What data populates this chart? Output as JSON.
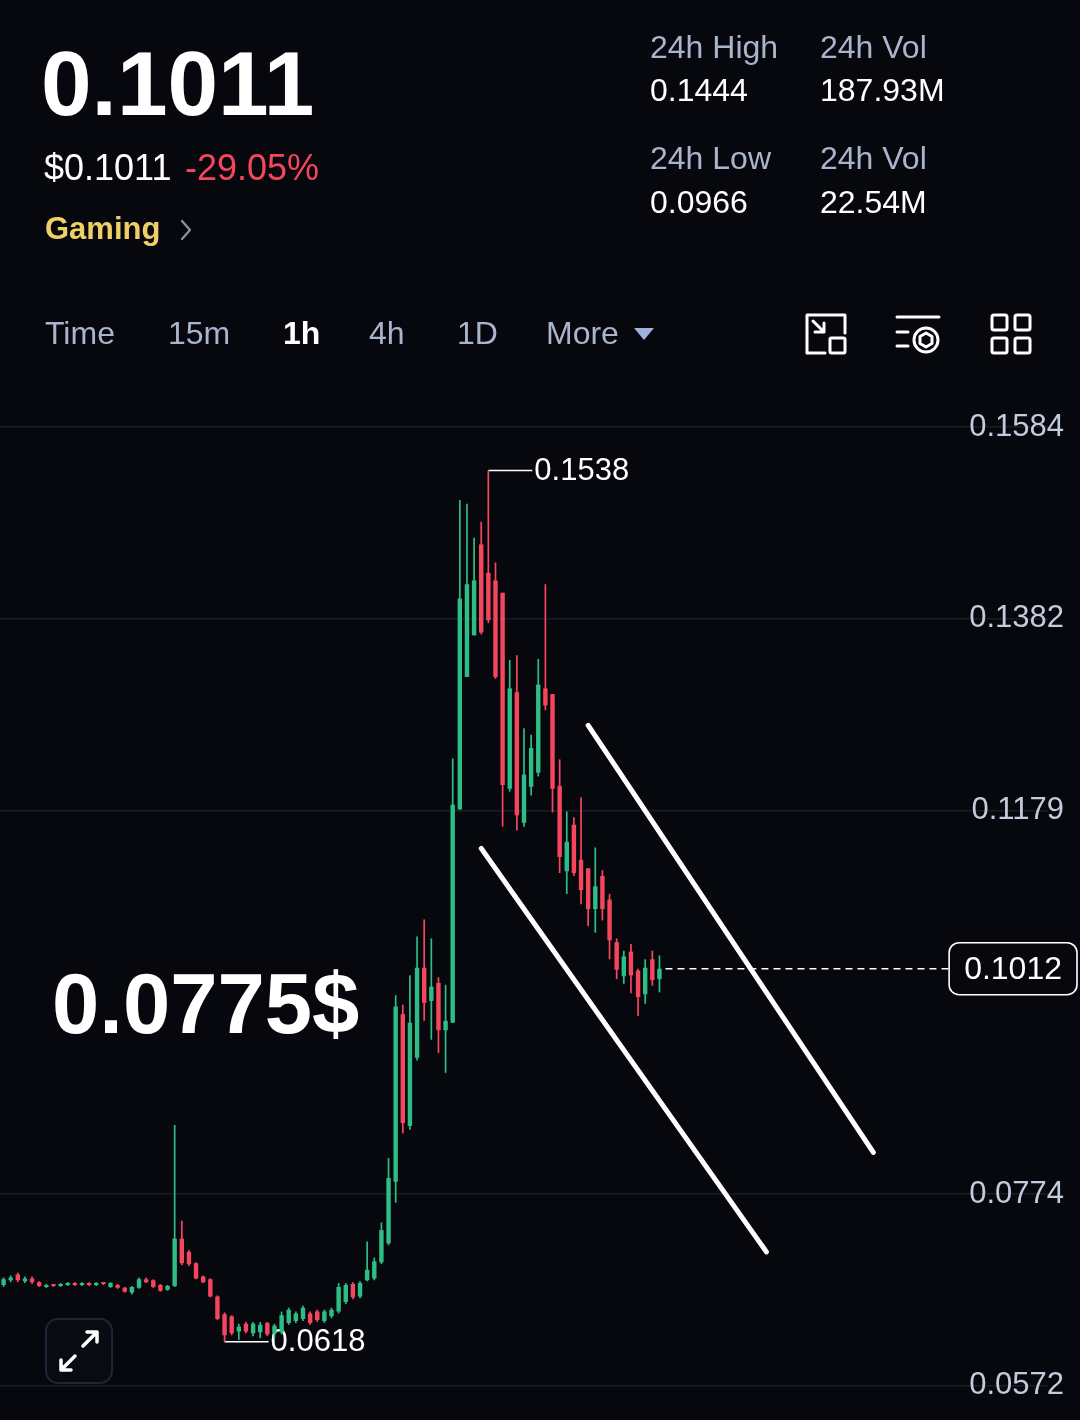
{
  "chart_data": {
    "type": "candlestick",
    "title": "0.1011",
    "subtitle": "$0.1011",
    "categories": [
      null,
      null,
      null,
      null,
      null,
      null,
      null,
      null,
      null,
      null,
      null,
      null,
      null,
      null,
      null,
      null,
      null,
      null,
      null,
      null,
      null,
      null,
      null,
      null,
      null,
      null,
      null,
      null,
      null,
      null,
      null,
      null,
      null,
      null,
      null,
      null,
      null,
      null,
      null,
      null,
      null,
      null,
      null,
      null,
      null,
      null,
      null,
      null,
      null,
      null,
      null,
      null,
      null,
      null,
      null,
      null,
      null,
      null,
      null,
      null,
      null,
      null,
      null,
      null,
      null,
      null,
      null,
      null,
      null,
      null,
      null,
      null,
      null,
      null,
      null,
      null,
      null,
      null,
      null,
      null,
      null,
      null,
      null,
      null,
      null,
      null,
      null,
      null,
      null,
      null,
      null,
      null,
      null,
      null,
      null,
      null,
      null,
      null,
      null,
      null,
      null,
      null,
      null,
      null,
      null,
      null,
      null,
      null,
      null,
      null,
      null,
      null,
      null,
      null,
      null,
      null,
      null,
      null,
      null,
      null,
      null,
      null,
      null,
      null,
      null,
      null,
      null,
      null,
      null,
      null,
      null,
      null,
      null,
      null,
      null,
      null,
      null,
      null,
      null,
      null,
      null,
      null,
      null,
      null,
      null,
      null,
      null
    ],
    "ohlc": [
      [
        0.0678,
        0.0686,
        0.0676,
        0.0684
      ],
      [
        0.0683,
        0.0688,
        0.0681,
        0.0686
      ],
      [
        0.0689,
        0.0691,
        0.0681,
        0.0683
      ],
      [
        0.0682,
        0.0687,
        0.068,
        0.0685
      ],
      [
        0.0685,
        0.0687,
        0.0679,
        0.0681
      ],
      [
        0.0681,
        0.0682,
        0.0676,
        0.0677
      ],
      [
        0.0676,
        0.0679,
        0.0675,
        0.0678
      ],
      [
        0.0678,
        0.0679,
        0.0676,
        0.0677
      ],
      [
        0.0677,
        0.068,
        0.0676,
        0.0679
      ],
      [
        0.0678,
        0.0681,
        0.0677,
        0.068
      ],
      [
        0.068,
        0.0681,
        0.0677,
        0.0678
      ],
      [
        0.0678,
        0.0681,
        0.0677,
        0.068
      ],
      [
        0.068,
        0.0681,
        0.0677,
        0.0678
      ],
      [
        0.0678,
        0.0681,
        0.0677,
        0.068
      ],
      [
        0.068,
        0.0681,
        0.0678,
        0.0679
      ],
      [
        0.0676,
        0.0681,
        0.0675,
        0.068
      ],
      [
        0.0678,
        0.0679,
        0.0674,
        0.0675
      ],
      [
        0.0675,
        0.0676,
        0.067,
        0.0671
      ],
      [
        0.067,
        0.0677,
        0.0668,
        0.0676
      ],
      [
        0.0675,
        0.0686,
        0.0674,
        0.0684
      ],
      [
        0.0684,
        0.0686,
        0.068,
        0.0681
      ],
      [
        0.0683,
        0.0684,
        0.0675,
        0.0676
      ],
      [
        0.0678,
        0.0679,
        0.0671,
        0.0672
      ],
      [
        0.0673,
        0.0678,
        0.0672,
        0.0677
      ],
      [
        0.0677,
        0.0847,
        0.0676,
        0.0727
      ],
      [
        0.0727,
        0.0746,
        0.0699,
        0.0701
      ],
      [
        0.0713,
        0.0715,
        0.0698,
        0.07
      ],
      [
        0.0701,
        0.0702,
        0.0684,
        0.0685
      ],
      [
        0.0687,
        0.0688,
        0.068,
        0.0681
      ],
      [
        0.0684,
        0.0685,
        0.0665,
        0.0666
      ],
      [
        0.0666,
        0.0667,
        0.0641,
        0.0642
      ],
      [
        0.0647,
        0.0649,
        0.0618,
        0.0625
      ],
      [
        0.0645,
        0.0646,
        0.0625,
        0.0627
      ],
      [
        0.0629,
        0.0637,
        0.062,
        0.0634
      ],
      [
        0.0637,
        0.0639,
        0.0627,
        0.0629
      ],
      [
        0.0627,
        0.0639,
        0.0624,
        0.0637
      ],
      [
        0.0628,
        0.0639,
        0.0622,
        0.0636
      ],
      [
        0.0638,
        0.0639,
        0.0624,
        0.0626
      ],
      [
        0.0627,
        0.0637,
        0.0622,
        0.0635
      ],
      [
        0.0628,
        0.065,
        0.0626,
        0.0646
      ],
      [
        0.0638,
        0.0654,
        0.0636,
        0.0652
      ],
      [
        0.064,
        0.065,
        0.0638,
        0.0648
      ],
      [
        0.0642,
        0.0656,
        0.064,
        0.0654
      ],
      [
        0.0648,
        0.065,
        0.0636,
        0.0638
      ],
      [
        0.065,
        0.0652,
        0.0639,
        0.0641
      ],
      [
        0.064,
        0.0652,
        0.0638,
        0.065
      ],
      [
        0.0645,
        0.0654,
        0.0643,
        0.0652
      ],
      [
        0.065,
        0.068,
        0.0648,
        0.0676
      ],
      [
        0.066,
        0.068,
        0.0658,
        0.0678
      ],
      [
        0.0679,
        0.0681,
        0.0663,
        0.0665
      ],
      [
        0.0666,
        0.0682,
        0.0664,
        0.068
      ],
      [
        0.0683,
        0.0724,
        0.0682,
        0.0694
      ],
      [
        0.0685,
        0.0707,
        0.0683,
        0.0703
      ],
      [
        0.0702,
        0.0744,
        0.07,
        0.0736
      ],
      [
        0.0722,
        0.0812,
        0.072,
        0.0791
      ],
      [
        0.0787,
        0.0984,
        0.0765,
        0.0972
      ],
      [
        0.0964,
        0.0974,
        0.0838,
        0.0849
      ],
      [
        0.0846,
        0.1005,
        0.0842,
        0.0955
      ],
      [
        0.0918,
        0.1046,
        0.0915,
        0.1013
      ],
      [
        0.1013,
        0.1064,
        0.0957,
        0.0976
      ],
      [
        0.0978,
        0.1044,
        0.0937,
        0.0993
      ],
      [
        0.0997,
        0.1003,
        0.0923,
        0.0947
      ],
      [
        0.0947,
        0.0995,
        0.0902,
        0.0957
      ],
      [
        0.0955,
        0.1234,
        0.0955,
        0.1185
      ],
      [
        0.118,
        0.1507,
        0.118,
        0.1403
      ],
      [
        0.132,
        0.1503,
        0.132,
        0.1418
      ],
      [
        0.1364,
        0.1467,
        0.1364,
        0.1422
      ],
      [
        0.146,
        0.1484,
        0.1365,
        0.1367
      ],
      [
        0.143,
        0.1538,
        0.1377,
        0.138
      ],
      [
        0.1422,
        0.1441,
        0.1318,
        0.132
      ],
      [
        0.1409,
        0.1409,
        0.1162,
        0.1206
      ],
      [
        0.1202,
        0.1338,
        0.1199,
        0.1308
      ],
      [
        0.1304,
        0.1343,
        0.1158,
        0.1174
      ],
      [
        0.1166,
        0.1266,
        0.1162,
        0.1217
      ],
      [
        0.1204,
        0.1259,
        0.1195,
        0.1245
      ],
      [
        0.1219,
        0.1339,
        0.1215,
        0.1312
      ],
      [
        0.1308,
        0.1418,
        0.1285,
        0.129
      ],
      [
        0.1302,
        0.1302,
        0.1177,
        0.1202
      ],
      [
        0.1205,
        0.1233,
        0.1113,
        0.113
      ],
      [
        0.1115,
        0.1178,
        0.1091,
        0.1146
      ],
      [
        0.1164,
        0.1172,
        0.111,
        0.1113
      ],
      [
        0.1127,
        0.1193,
        0.108,
        0.1095
      ],
      [
        0.1118,
        0.1118,
        0.1057,
        0.1075
      ],
      [
        0.1075,
        0.114,
        0.105,
        0.1099
      ],
      [
        0.111,
        0.1116,
        0.1063,
        0.1075
      ],
      [
        0.1085,
        0.1091,
        0.1022,
        0.1042
      ],
      [
        0.104,
        0.1044,
        0.1001,
        0.1011
      ],
      [
        0.1004,
        0.1031,
        0.0996,
        0.1025
      ],
      [
        0.103,
        0.1038,
        0.0986,
        0.1005
      ],
      [
        0.101,
        0.1012,
        0.0962,
        0.0982
      ],
      [
        0.0985,
        0.1022,
        0.0975,
        0.1013
      ],
      [
        0.1022,
        0.1031,
        0.0994,
        0.1
      ],
      [
        0.1001,
        0.1026,
        0.0987,
        0.1012
      ],
      null,
      null,
      null,
      null,
      null,
      null,
      null,
      null,
      null,
      null,
      null,
      null,
      null,
      null,
      null,
      null,
      null,
      null,
      null,
      null,
      null,
      null,
      null,
      null,
      null,
      null,
      null,
      null,
      null,
      null,
      null,
      null,
      null,
      null,
      null,
      null,
      null,
      null,
      null,
      null,
      null,
      null,
      null,
      null,
      null,
      null,
      null,
      null,
      null,
      null,
      null,
      null,
      null,
      null
    ],
    "colors": [
      "#2ebd85",
      "#2ebd85",
      "#f6465d",
      "#2ebd85",
      "#f6465d",
      "#f6465d",
      "#2ebd85",
      "#f6465d",
      "#2ebd85",
      "#2ebd85",
      "#f6465d",
      "#2ebd85",
      "#f6465d",
      "#2ebd85",
      "#f6465d",
      "#2ebd85",
      "#f6465d",
      "#f6465d",
      "#2ebd85",
      "#2ebd85",
      "#f6465d",
      "#f6465d",
      "#f6465d",
      "#2ebd85",
      "#2ebd85",
      "#f6465d",
      "#f6465d",
      "#f6465d",
      "#f6465d",
      "#f6465d",
      "#f6465d",
      "#f6465d",
      "#f6465d",
      "#2ebd85",
      "#f6465d",
      "#2ebd85",
      "#2ebd85",
      "#f6465d",
      "#2ebd85",
      "#2ebd85",
      "#2ebd85",
      "#2ebd85",
      "#2ebd85",
      "#f6465d",
      "#f6465d",
      "#2ebd85",
      "#2ebd85",
      "#2ebd85",
      "#2ebd85",
      "#f6465d",
      "#2ebd85",
      "#2ebd85",
      "#2ebd85",
      "#2ebd85",
      "#2ebd85",
      "#2ebd85",
      "#f6465d",
      "#2ebd85",
      "#2ebd85",
      "#f6465d",
      "#2ebd85",
      "#f6465d",
      "#2ebd85",
      "#2ebd85",
      "#2ebd85",
      "#2ebd85",
      "#2ebd85",
      "#f6465d",
      "#f6465d",
      "#f6465d",
      "#f6465d",
      "#2ebd85",
      "#f6465d",
      "#2ebd85",
      "#2ebd85",
      "#2ebd85",
      "#f6465d",
      "#f6465d",
      "#f6465d",
      "#2ebd85",
      "#f6465d",
      "#f6465d",
      "#f6465d",
      "#2ebd85",
      "#f6465d",
      "#f6465d",
      "#f6465d",
      "#2ebd85",
      "#f6465d",
      "#f6465d",
      "#2ebd85",
      "#f6465d",
      "#2ebd85",
      null,
      null,
      null,
      null,
      null,
      null,
      null,
      null,
      null,
      null,
      null,
      null,
      null,
      null,
      null,
      null,
      null,
      null,
      null,
      null,
      null,
      null,
      null,
      null,
      null,
      null,
      null,
      null,
      null,
      null,
      null,
      null,
      null,
      null,
      null,
      null,
      null,
      null,
      null,
      null,
      null,
      null,
      null,
      null,
      null,
      null,
      null,
      null,
      null,
      null,
      null,
      null,
      null,
      null
    ],
    "series": [
      {
        "type": "line",
        "color": "#ffffff",
        "values": [
          null,
          null,
          null,
          null,
          null,
          null,
          null,
          null,
          null,
          null,
          null,
          null,
          null,
          null,
          null,
          null,
          null,
          null,
          null,
          null,
          null,
          null,
          null,
          null,
          null,
          null,
          null,
          null,
          null,
          null,
          null,
          null,
          null,
          null,
          null,
          null,
          null,
          null,
          null,
          null,
          null,
          null,
          null,
          null,
          null,
          null,
          null,
          null,
          null,
          null,
          null,
          null,
          null,
          null,
          null,
          null,
          null,
          null,
          null,
          null,
          null,
          null,
          null,
          null,
          null,
          null,
          null,
          0.1139,
          null,
          null,
          null,
          null,
          null,
          null,
          null,
          null,
          null,
          null,
          null,
          null,
          null,
          null,
          null,
          null,
          null,
          null,
          null,
          null,
          null,
          null,
          null,
          null,
          null,
          null,
          null,
          null,
          null,
          null,
          null,
          null,
          null,
          null,
          null,
          null,
          null,
          null,
          null,
          0.0713,
          null,
          null,
          null,
          null,
          null,
          null,
          null,
          null,
          null,
          null,
          null,
          null,
          null,
          null,
          null,
          null,
          null,
          null,
          null,
          null,
          null,
          null,
          null,
          null,
          null,
          null,
          null,
          null,
          null,
          null,
          null,
          null,
          null,
          null,
          null,
          null,
          null,
          null,
          null
        ]
      },
      {
        "type": "line",
        "color": "#ffffff",
        "values": [
          null,
          null,
          null,
          null,
          null,
          null,
          null,
          null,
          null,
          null,
          null,
          null,
          null,
          null,
          null,
          null,
          null,
          null,
          null,
          null,
          null,
          null,
          null,
          null,
          null,
          null,
          null,
          null,
          null,
          null,
          null,
          null,
          null,
          null,
          null,
          null,
          null,
          null,
          null,
          null,
          null,
          null,
          null,
          null,
          null,
          null,
          null,
          null,
          null,
          null,
          null,
          null,
          null,
          null,
          null,
          null,
          null,
          null,
          null,
          null,
          null,
          null,
          null,
          null,
          null,
          null,
          null,
          null,
          null,
          null,
          null,
          null,
          null,
          null,
          null,
          null,
          null,
          null,
          null,
          null,
          null,
          null,
          0.1269,
          null,
          null,
          null,
          null,
          null,
          null,
          null,
          null,
          null,
          null,
          null,
          null,
          null,
          null,
          null,
          null,
          null,
          null,
          null,
          null,
          null,
          null,
          null,
          null,
          null,
          null,
          null,
          null,
          null,
          null,
          null,
          null,
          null,
          null,
          null,
          null,
          null,
          null,
          null,
          0.0818,
          null,
          null,
          null,
          null,
          null,
          null,
          null,
          null,
          null,
          null,
          null,
          null,
          null,
          null,
          null,
          null,
          null,
          null,
          null,
          null,
          null,
          null,
          null,
          null
        ]
      }
    ],
    "ylim": [
      0.0572,
      0.1584
    ],
    "yticks": [
      0.0572,
      0.0774,
      0.1179,
      0.1382,
      0.1584
    ],
    "grid": "y",
    "tick_labels": "y",
    "ref_lines": [
      {
        "axis": "y",
        "value": 0.1012,
        "label": "0.1012",
        "color": "#ffffff",
        "line_style": "dashed"
      }
    ],
    "annotations": [
      "-29.05%",
      "Gaming",
      "24h High",
      "0.1444",
      "24h Vol",
      "187.93M",
      "24h Low",
      "0.0966",
      "24h Vol",
      "22.54M",
      "Time",
      "15m",
      "1h",
      "4h",
      "1D",
      "More",
      "0.0775$",
      "0.1538",
      "0.0618"
    ]
  }
}
